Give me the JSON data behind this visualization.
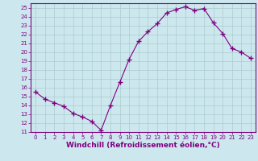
{
  "x": [
    0,
    1,
    2,
    3,
    4,
    5,
    6,
    7,
    8,
    9,
    10,
    11,
    12,
    13,
    14,
    15,
    16,
    17,
    18,
    19,
    20,
    21,
    22,
    23
  ],
  "y": [
    15.5,
    14.7,
    14.3,
    13.9,
    13.1,
    12.7,
    12.2,
    11.2,
    14.0,
    16.6,
    19.2,
    21.2,
    22.3,
    23.2,
    24.4,
    24.8,
    25.1,
    24.7,
    24.9,
    23.3,
    22.1,
    20.4,
    20.0,
    19.3
  ],
  "line_color": "#800080",
  "marker": "+",
  "markersize": 4,
  "markeredgewidth": 1,
  "linewidth": 0.8,
  "xlim": [
    -0.5,
    23.5
  ],
  "ylim": [
    11,
    25.5
  ],
  "yticks": [
    11,
    12,
    13,
    14,
    15,
    16,
    17,
    18,
    19,
    20,
    21,
    22,
    23,
    24,
    25
  ],
  "xticks": [
    0,
    1,
    2,
    3,
    4,
    5,
    6,
    7,
    8,
    9,
    10,
    11,
    12,
    13,
    14,
    15,
    16,
    17,
    18,
    19,
    20,
    21,
    22,
    23
  ],
  "xlabel": "Windchill (Refroidissement éolien,°C)",
  "background_color": "#cce8ee",
  "grid_color": "#aacccc",
  "tick_label_fontsize": 5,
  "xlabel_fontsize": 6.5,
  "border_color": "#800080"
}
